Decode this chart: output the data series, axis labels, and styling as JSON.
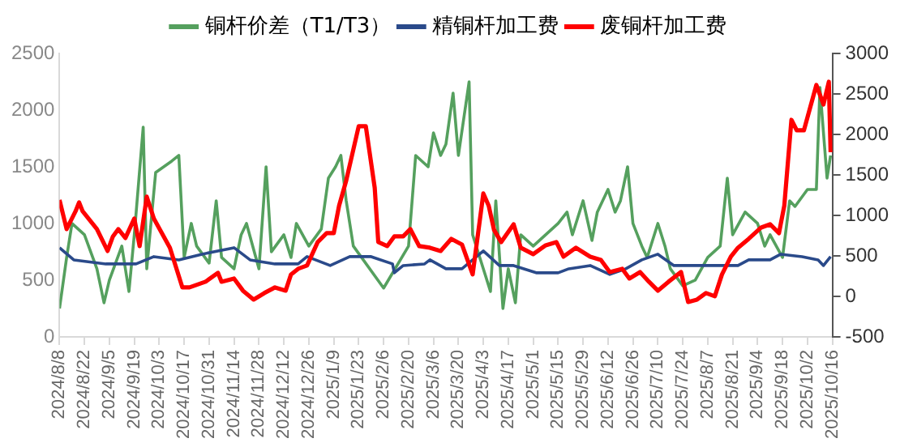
{
  "chart_data": {
    "type": "line",
    "legend": "top",
    "grid": false,
    "marker": "none",
    "line_style": "solid",
    "xlim": [
      "2024-08-08",
      "2025-10-16"
    ],
    "xticks": [
      {
        "value": "2024-08-08",
        "label": "2024/8/8"
      },
      {
        "value": "2024-08-22",
        "label": "2024/8/22"
      },
      {
        "value": "2024-09-05",
        "label": "2024/9/5"
      },
      {
        "value": "2024-09-19",
        "label": "2024/9/19"
      },
      {
        "value": "2024-10-03",
        "label": "2024/10/3"
      },
      {
        "value": "2024-10-17",
        "label": "2024/10/17"
      },
      {
        "value": "2024-10-31",
        "label": "2024/10/31"
      },
      {
        "value": "2024-11-14",
        "label": "2024/11/14"
      },
      {
        "value": "2024-11-28",
        "label": "2024/11/28"
      },
      {
        "value": "2024-12-12",
        "label": "2024/12/12"
      },
      {
        "value": "2024-12-26",
        "label": "2024/12/26"
      },
      {
        "value": "2025-01-09",
        "label": "2025/1/9"
      },
      {
        "value": "2025-01-23",
        "label": "2025/1/23"
      },
      {
        "value": "2025-02-06",
        "label": "2025/2/6"
      },
      {
        "value": "2025-02-20",
        "label": "2025/2/20"
      },
      {
        "value": "2025-03-06",
        "label": "2025/3/6"
      },
      {
        "value": "2025-03-20",
        "label": "2025/3/20"
      },
      {
        "value": "2025-04-03",
        "label": "2025/4/3"
      },
      {
        "value": "2025-04-17",
        "label": "2025/4/17"
      },
      {
        "value": "2025-05-01",
        "label": "2025/5/1"
      },
      {
        "value": "2025-05-15",
        "label": "2025/5/15"
      },
      {
        "value": "2025-05-29",
        "label": "2025/5/29"
      },
      {
        "value": "2025-06-12",
        "label": "2025/6/12"
      },
      {
        "value": "2025-06-26",
        "label": "2025/6/26"
      },
      {
        "value": "2025-07-10",
        "label": "2025/7/10"
      },
      {
        "value": "2025-07-24",
        "label": "2025/7/24"
      },
      {
        "value": "2025-08-07",
        "label": "2025/8/7"
      },
      {
        "value": "2025-08-21",
        "label": "2025/8/21"
      },
      {
        "value": "2025-09-04",
        "label": "2025/9/4"
      },
      {
        "value": "2025-09-18",
        "label": "2025/9/18"
      },
      {
        "value": "2025-10-02",
        "label": "2025/10/2"
      },
      {
        "value": "2025-10-16",
        "label": "2025/10/16"
      }
    ],
    "ylim": [
      0,
      2500
    ],
    "yticks": [
      0,
      500,
      1000,
      1500,
      2000,
      2500
    ],
    "y2lim": [
      -500,
      3000
    ],
    "y2ticks": [
      -500,
      0,
      500,
      1000,
      1500,
      2000,
      2500,
      3000
    ],
    "series": [
      {
        "name": "铜杆价差（T1/T3）",
        "color": "#55a05e",
        "x": [
          "2024-08-08",
          "2024-08-12",
          "2024-08-15",
          "2024-08-22",
          "2024-08-29",
          "2024-09-02",
          "2024-09-05",
          "2024-09-12",
          "2024-09-16",
          "2024-09-19",
          "2024-09-24",
          "2024-09-26",
          "2024-10-01",
          "2024-10-10",
          "2024-10-14",
          "2024-10-17",
          "2024-10-21",
          "2024-10-24",
          "2024-10-31",
          "2024-11-04",
          "2024-11-07",
          "2024-11-14",
          "2024-11-18",
          "2024-11-21",
          "2024-11-28",
          "2024-12-02",
          "2024-12-05",
          "2024-12-12",
          "2024-12-16",
          "2024-12-19",
          "2024-12-26",
          "2025-01-02",
          "2025-01-06",
          "2025-01-10",
          "2025-01-13",
          "2025-01-16",
          "2025-01-20",
          "2025-02-06",
          "2025-02-20",
          "2025-02-24",
          "2025-03-03",
          "2025-03-06",
          "2025-03-10",
          "2025-03-13",
          "2025-03-17",
          "2025-03-20",
          "2025-03-26",
          "2025-03-28",
          "2025-04-03",
          "2025-04-07",
          "2025-04-10",
          "2025-04-14",
          "2025-04-17",
          "2025-04-21",
          "2025-04-24",
          "2025-05-01",
          "2025-05-08",
          "2025-05-15",
          "2025-05-20",
          "2025-05-23",
          "2025-05-29",
          "2025-06-03",
          "2025-06-06",
          "2025-06-12",
          "2025-06-16",
          "2025-06-19",
          "2025-06-23",
          "2025-06-26",
          "2025-07-01",
          "2025-07-04",
          "2025-07-10",
          "2025-07-14",
          "2025-07-17",
          "2025-07-24",
          "2025-07-31",
          "2025-08-07",
          "2025-08-14",
          "2025-08-18",
          "2025-08-21",
          "2025-08-28",
          "2025-09-04",
          "2025-09-08",
          "2025-09-11",
          "2025-09-18",
          "2025-09-22",
          "2025-09-25",
          "2025-10-02",
          "2025-10-07",
          "2025-10-09",
          "2025-10-13",
          "2025-10-15"
        ],
        "values": [
          250,
          700,
          1000,
          900,
          600,
          300,
          500,
          800,
          400,
          900,
          1850,
          600,
          1450,
          1550,
          1600,
          700,
          1000,
          800,
          650,
          1200,
          700,
          600,
          900,
          1000,
          600,
          1500,
          750,
          900,
          700,
          1000,
          800,
          950,
          1400,
          1500,
          1600,
          1200,
          800,
          430,
          800,
          1600,
          1500,
          1800,
          1600,
          1700,
          2150,
          1600,
          2250,
          900,
          600,
          400,
          1200,
          250,
          600,
          300,
          900,
          800,
          900,
          1000,
          1100,
          900,
          1200,
          850,
          1100,
          1300,
          1100,
          1200,
          1500,
          1000,
          800,
          700,
          1000,
          800,
          600,
          450,
          500,
          700,
          800,
          1400,
          900,
          1100,
          1000,
          800,
          900,
          700,
          1200,
          1150,
          1300,
          1300,
          2200,
          1400,
          1600
        ]
      },
      {
        "name": "精铜杆加工费",
        "color": "#2a4a8a",
        "axis": "y2",
        "x": [
          "2024-08-08",
          "2024-08-16",
          "2024-09-03",
          "2024-09-20",
          "2024-09-30",
          "2024-10-14",
          "2024-10-27",
          "2024-11-14",
          "2024-11-23",
          "2024-12-07",
          "2024-12-20",
          "2024-12-25",
          "2025-01-07",
          "2025-01-18",
          "2025-01-30",
          "2025-02-11",
          "2025-02-12",
          "2025-02-17",
          "2025-03-01",
          "2025-03-04",
          "2025-03-13",
          "2025-03-22",
          "2025-03-28",
          "2025-04-03",
          "2025-04-12",
          "2025-04-20",
          "2025-05-03",
          "2025-05-15",
          "2025-05-21",
          "2025-06-02",
          "2025-06-13",
          "2025-06-22",
          "2025-07-01",
          "2025-07-10",
          "2025-07-19",
          "2025-08-01",
          "2025-08-12",
          "2025-08-24",
          "2025-08-30",
          "2025-09-11",
          "2025-09-17",
          "2025-09-29",
          "2025-10-08",
          "2025-10-11",
          "2025-10-15"
        ],
        "values": [
          600,
          450,
          400,
          400,
          490,
          450,
          520,
          600,
          450,
          400,
          400,
          490,
          380,
          490,
          490,
          400,
          290,
          380,
          400,
          450,
          340,
          340,
          450,
          560,
          380,
          380,
          290,
          290,
          340,
          380,
          270,
          340,
          450,
          520,
          380,
          380,
          380,
          380,
          450,
          450,
          520,
          490,
          450,
          380,
          490
        ]
      },
      {
        "name": "废铜杆加工费",
        "color": "#ff0000",
        "axis": "y2",
        "x": [
          "2024-08-08",
          "2024-08-12",
          "2024-08-17",
          "2024-08-19",
          "2024-08-21",
          "2024-08-29",
          "2024-09-04",
          "2024-09-07",
          "2024-09-10",
          "2024-09-14",
          "2024-09-19",
          "2024-09-22",
          "2024-09-26",
          "2024-09-30",
          "2024-10-09",
          "2024-10-16",
          "2024-10-20",
          "2024-10-29",
          "2024-11-05",
          "2024-11-07",
          "2024-11-14",
          "2024-11-19",
          "2024-11-25",
          "2024-12-01",
          "2024-12-07",
          "2024-12-13",
          "2024-12-16",
          "2024-12-20",
          "2024-12-25",
          "2024-12-31",
          "2025-01-05",
          "2025-01-09",
          "2025-01-12",
          "2025-01-16",
          "2025-01-23",
          "2025-01-27",
          "2025-02-01",
          "2025-02-03",
          "2025-02-08",
          "2025-02-12",
          "2025-02-17",
          "2025-02-21",
          "2025-02-26",
          "2025-03-04",
          "2025-03-10",
          "2025-03-16",
          "2025-03-22",
          "2025-03-28",
          "2025-04-03",
          "2025-04-06",
          "2025-04-09",
          "2025-04-13",
          "2025-04-20",
          "2025-04-24",
          "2025-05-01",
          "2025-05-08",
          "2025-05-14",
          "2025-05-18",
          "2025-05-25",
          "2025-06-02",
          "2025-06-08",
          "2025-06-13",
          "2025-06-20",
          "2025-06-24",
          "2025-06-30",
          "2025-07-05",
          "2025-07-10",
          "2025-07-16",
          "2025-07-23",
          "2025-07-27",
          "2025-08-01",
          "2025-08-06",
          "2025-08-11",
          "2025-08-15",
          "2025-08-20",
          "2025-08-24",
          "2025-08-30",
          "2025-09-06",
          "2025-09-11",
          "2025-09-16",
          "2025-09-19",
          "2025-09-23",
          "2025-09-26",
          "2025-09-30",
          "2025-10-07",
          "2025-10-11",
          "2025-10-14",
          "2025-10-15"
        ],
        "values": [
          1190,
          830,
          1050,
          1160,
          1050,
          830,
          560,
          740,
          830,
          720,
          960,
          620,
          1230,
          960,
          600,
          110,
          110,
          180,
          290,
          180,
          220,
          70,
          -40,
          40,
          110,
          70,
          270,
          340,
          380,
          670,
          780,
          780,
          1120,
          1430,
          2100,
          2100,
          1340,
          670,
          620,
          740,
          740,
          830,
          620,
          600,
          560,
          710,
          640,
          270,
          1270,
          1120,
          820,
          670,
          890,
          600,
          520,
          630,
          670,
          490,
          600,
          490,
          450,
          300,
          340,
          220,
          300,
          180,
          70,
          180,
          300,
          -70,
          -40,
          40,
          0,
          270,
          490,
          600,
          710,
          850,
          890,
          780,
          1120,
          2180,
          2050,
          2050,
          2610,
          2370,
          2650,
          1780
        ]
      }
    ]
  }
}
